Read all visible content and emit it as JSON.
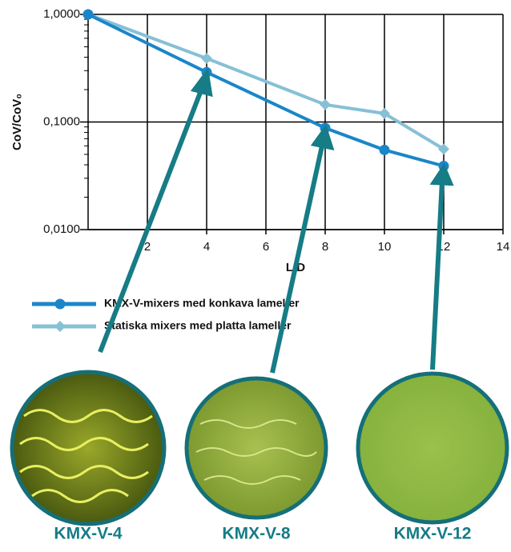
{
  "chart_data": {
    "type": "line",
    "x": [
      0,
      4,
      8,
      10,
      12
    ],
    "series": [
      {
        "name": "KMX-V-mixers med konkava lameller",
        "color": "#1a86c8",
        "marker": "circle",
        "values": [
          1.0,
          0.29,
          0.088,
          0.055,
          0.039
        ]
      },
      {
        "name": "Statiska mixers med platta lameller",
        "color": "#86c0d6",
        "marker": "diamond",
        "values": [
          1.0,
          0.39,
          0.145,
          0.12,
          0.056
        ]
      }
    ],
    "xlabel": "L/D",
    "ylabel": "CoV/CoV₀",
    "xlim": [
      0,
      14
    ],
    "xticks": [
      2,
      4,
      6,
      8,
      10,
      12,
      14
    ],
    "ylim": [
      0.01,
      1
    ],
    "yscale": "log",
    "yticks": [
      {
        "value": 1,
        "label": "1,0000"
      },
      {
        "value": 0.1,
        "label": "0,1000"
      },
      {
        "value": 0.01,
        "label": "0,0100"
      }
    ],
    "grid": true
  },
  "samples": [
    "KMX-V-4",
    "KMX-V-8",
    "KMX-V-12"
  ]
}
